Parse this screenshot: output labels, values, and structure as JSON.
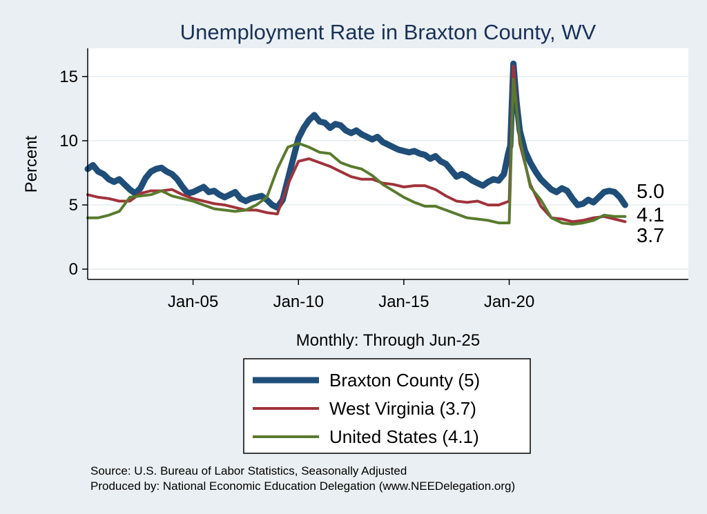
{
  "chart_data": {
    "type": "line",
    "title": "Unemployment Rate in Braxton  County, WV",
    "ylabel": "Percent",
    "xlabel": "Monthly: Through Jun-25",
    "xlim": [
      2000.0,
      2028.5
    ],
    "ylim": [
      -0.8,
      17.2
    ],
    "yticks": [
      0,
      5,
      10,
      15
    ],
    "xticks": [
      {
        "label": "Jan-05",
        "x": 2005
      },
      {
        "label": "Jan-10",
        "x": 2010
      },
      {
        "label": "Jan-15",
        "x": 2015
      },
      {
        "label": "Jan-20",
        "x": 2020
      }
    ],
    "series": [
      {
        "name": "Braxton  County",
        "legend_label": "Braxton  County (5)",
        "color": "#1f4e79",
        "end_label": "5.0",
        "points": [
          [
            2000.0,
            7.8
          ],
          [
            2000.25,
            8.1
          ],
          [
            2000.5,
            7.6
          ],
          [
            2000.75,
            7.4
          ],
          [
            2001.0,
            7.0
          ],
          [
            2001.25,
            6.8
          ],
          [
            2001.5,
            7.0
          ],
          [
            2001.75,
            6.6
          ],
          [
            2002.0,
            6.2
          ],
          [
            2002.25,
            5.9
          ],
          [
            2002.5,
            6.3
          ],
          [
            2002.75,
            7.1
          ],
          [
            2003.0,
            7.6
          ],
          [
            2003.25,
            7.8
          ],
          [
            2003.5,
            7.9
          ],
          [
            2003.75,
            7.6
          ],
          [
            2004.0,
            7.4
          ],
          [
            2004.25,
            7.0
          ],
          [
            2004.5,
            6.4
          ],
          [
            2004.75,
            5.9
          ],
          [
            2005.0,
            6.0
          ],
          [
            2005.25,
            6.2
          ],
          [
            2005.5,
            6.4
          ],
          [
            2005.75,
            6.0
          ],
          [
            2006.0,
            6.1
          ],
          [
            2006.25,
            5.8
          ],
          [
            2006.5,
            5.6
          ],
          [
            2006.75,
            5.8
          ],
          [
            2007.0,
            6.0
          ],
          [
            2007.25,
            5.5
          ],
          [
            2007.5,
            5.3
          ],
          [
            2007.75,
            5.5
          ],
          [
            2008.0,
            5.6
          ],
          [
            2008.25,
            5.7
          ],
          [
            2008.5,
            5.4
          ],
          [
            2008.75,
            5.0
          ],
          [
            2009.0,
            4.8
          ],
          [
            2009.25,
            5.4
          ],
          [
            2009.5,
            7.0
          ],
          [
            2009.75,
            8.6
          ],
          [
            2010.0,
            10.2
          ],
          [
            2010.25,
            11.0
          ],
          [
            2010.5,
            11.6
          ],
          [
            2010.75,
            12.0
          ],
          [
            2011.0,
            11.5
          ],
          [
            2011.25,
            11.4
          ],
          [
            2011.5,
            11.0
          ],
          [
            2011.75,
            11.3
          ],
          [
            2012.0,
            11.2
          ],
          [
            2012.25,
            10.8
          ],
          [
            2012.5,
            10.6
          ],
          [
            2012.75,
            10.8
          ],
          [
            2013.0,
            10.5
          ],
          [
            2013.25,
            10.3
          ],
          [
            2013.5,
            10.1
          ],
          [
            2013.75,
            10.3
          ],
          [
            2014.0,
            9.9
          ],
          [
            2014.25,
            9.7
          ],
          [
            2014.5,
            9.5
          ],
          [
            2014.75,
            9.3
          ],
          [
            2015.0,
            9.2
          ],
          [
            2015.25,
            9.1
          ],
          [
            2015.5,
            9.2
          ],
          [
            2015.75,
            9.0
          ],
          [
            2016.0,
            8.9
          ],
          [
            2016.25,
            8.6
          ],
          [
            2016.5,
            8.8
          ],
          [
            2016.75,
            8.4
          ],
          [
            2017.0,
            8.2
          ],
          [
            2017.25,
            7.7
          ],
          [
            2017.5,
            7.2
          ],
          [
            2017.75,
            7.4
          ],
          [
            2018.0,
            7.2
          ],
          [
            2018.25,
            6.9
          ],
          [
            2018.5,
            6.7
          ],
          [
            2018.75,
            6.5
          ],
          [
            2019.0,
            6.8
          ],
          [
            2019.25,
            7.0
          ],
          [
            2019.5,
            6.9
          ],
          [
            2019.75,
            7.4
          ],
          [
            2019.95,
            9.0
          ],
          [
            2020.05,
            9.6
          ],
          [
            2020.2,
            16.0
          ],
          [
            2020.35,
            13.0
          ],
          [
            2020.5,
            10.8
          ],
          [
            2020.75,
            9.2
          ],
          [
            2021.0,
            8.3
          ],
          [
            2021.25,
            7.6
          ],
          [
            2021.5,
            7.0
          ],
          [
            2021.75,
            6.6
          ],
          [
            2022.0,
            6.2
          ],
          [
            2022.25,
            6.0
          ],
          [
            2022.5,
            6.3
          ],
          [
            2022.75,
            6.1
          ],
          [
            2023.0,
            5.5
          ],
          [
            2023.25,
            5.0
          ],
          [
            2023.5,
            5.1
          ],
          [
            2023.75,
            5.4
          ],
          [
            2024.0,
            5.2
          ],
          [
            2024.25,
            5.6
          ],
          [
            2024.5,
            6.0
          ],
          [
            2024.75,
            6.1
          ],
          [
            2025.0,
            6.0
          ],
          [
            2025.25,
            5.6
          ],
          [
            2025.5,
            5.0
          ]
        ]
      },
      {
        "name": "West Virginia",
        "legend_label": "West Virginia (3.7)",
        "color": "#a0333a",
        "end_label": "3.7",
        "points": [
          [
            2000.0,
            5.8
          ],
          [
            2000.5,
            5.6
          ],
          [
            2001.0,
            5.5
          ],
          [
            2001.5,
            5.3
          ],
          [
            2002.0,
            5.3
          ],
          [
            2002.5,
            5.9
          ],
          [
            2003.0,
            6.1
          ],
          [
            2003.5,
            6.1
          ],
          [
            2004.0,
            6.2
          ],
          [
            2004.5,
            5.8
          ],
          [
            2005.0,
            5.5
          ],
          [
            2005.5,
            5.3
          ],
          [
            2006.0,
            5.1
          ],
          [
            2006.5,
            5.0
          ],
          [
            2007.0,
            4.8
          ],
          [
            2007.5,
            4.6
          ],
          [
            2008.0,
            4.6
          ],
          [
            2008.5,
            4.4
          ],
          [
            2009.0,
            4.3
          ],
          [
            2009.5,
            6.6
          ],
          [
            2010.0,
            8.4
          ],
          [
            2010.5,
            8.6
          ],
          [
            2011.0,
            8.3
          ],
          [
            2011.5,
            8.0
          ],
          [
            2012.0,
            7.6
          ],
          [
            2012.5,
            7.2
          ],
          [
            2013.0,
            7.0
          ],
          [
            2013.5,
            7.0
          ],
          [
            2014.0,
            6.7
          ],
          [
            2014.5,
            6.6
          ],
          [
            2015.0,
            6.4
          ],
          [
            2015.5,
            6.5
          ],
          [
            2016.0,
            6.5
          ],
          [
            2016.5,
            6.2
          ],
          [
            2017.0,
            5.7
          ],
          [
            2017.5,
            5.3
          ],
          [
            2018.0,
            5.2
          ],
          [
            2018.5,
            5.3
          ],
          [
            2019.0,
            5.0
          ],
          [
            2019.5,
            5.0
          ],
          [
            2020.0,
            5.3
          ],
          [
            2020.2,
            15.8
          ],
          [
            2020.5,
            9.8
          ],
          [
            2021.0,
            6.6
          ],
          [
            2021.5,
            4.9
          ],
          [
            2022.0,
            4.0
          ],
          [
            2022.5,
            3.9
          ],
          [
            2023.0,
            3.7
          ],
          [
            2023.5,
            3.8
          ],
          [
            2024.0,
            4.0
          ],
          [
            2024.5,
            4.1
          ],
          [
            2025.0,
            3.9
          ],
          [
            2025.5,
            3.7
          ]
        ]
      },
      {
        "name": "United States",
        "legend_label": "United States (4.1)",
        "color": "#597a2e",
        "end_label": "4.1",
        "points": [
          [
            2000.0,
            4.0
          ],
          [
            2000.5,
            4.0
          ],
          [
            2001.0,
            4.2
          ],
          [
            2001.5,
            4.5
          ],
          [
            2002.0,
            5.6
          ],
          [
            2002.5,
            5.7
          ],
          [
            2003.0,
            5.8
          ],
          [
            2003.5,
            6.1
          ],
          [
            2004.0,
            5.7
          ],
          [
            2004.5,
            5.5
          ],
          [
            2005.0,
            5.3
          ],
          [
            2005.5,
            5.0
          ],
          [
            2006.0,
            4.7
          ],
          [
            2006.5,
            4.6
          ],
          [
            2007.0,
            4.5
          ],
          [
            2007.5,
            4.6
          ],
          [
            2008.0,
            5.0
          ],
          [
            2008.5,
            5.6
          ],
          [
            2009.0,
            7.8
          ],
          [
            2009.5,
            9.5
          ],
          [
            2010.0,
            9.8
          ],
          [
            2010.5,
            9.5
          ],
          [
            2011.0,
            9.1
          ],
          [
            2011.5,
            9.0
          ],
          [
            2012.0,
            8.3
          ],
          [
            2012.5,
            8.0
          ],
          [
            2013.0,
            7.8
          ],
          [
            2013.5,
            7.3
          ],
          [
            2014.0,
            6.6
          ],
          [
            2014.5,
            6.1
          ],
          [
            2015.0,
            5.6
          ],
          [
            2015.5,
            5.2
          ],
          [
            2016.0,
            4.9
          ],
          [
            2016.5,
            4.9
          ],
          [
            2017.0,
            4.6
          ],
          [
            2017.5,
            4.3
          ],
          [
            2018.0,
            4.0
          ],
          [
            2018.5,
            3.9
          ],
          [
            2019.0,
            3.8
          ],
          [
            2019.5,
            3.6
          ],
          [
            2020.0,
            3.6
          ],
          [
            2020.2,
            14.8
          ],
          [
            2020.5,
            10.2
          ],
          [
            2021.0,
            6.4
          ],
          [
            2021.5,
            5.4
          ],
          [
            2022.0,
            4.0
          ],
          [
            2022.5,
            3.6
          ],
          [
            2023.0,
            3.5
          ],
          [
            2023.5,
            3.6
          ],
          [
            2024.0,
            3.8
          ],
          [
            2024.5,
            4.2
          ],
          [
            2025.0,
            4.1
          ],
          [
            2025.5,
            4.1
          ]
        ]
      }
    ]
  },
  "source_note": "Source: U.S. Bureau of Labor Statistics, Seasonally Adjusted",
  "producer_note": "Produced by: National Economic Education Delegation (www.NEEDelegation.org)"
}
